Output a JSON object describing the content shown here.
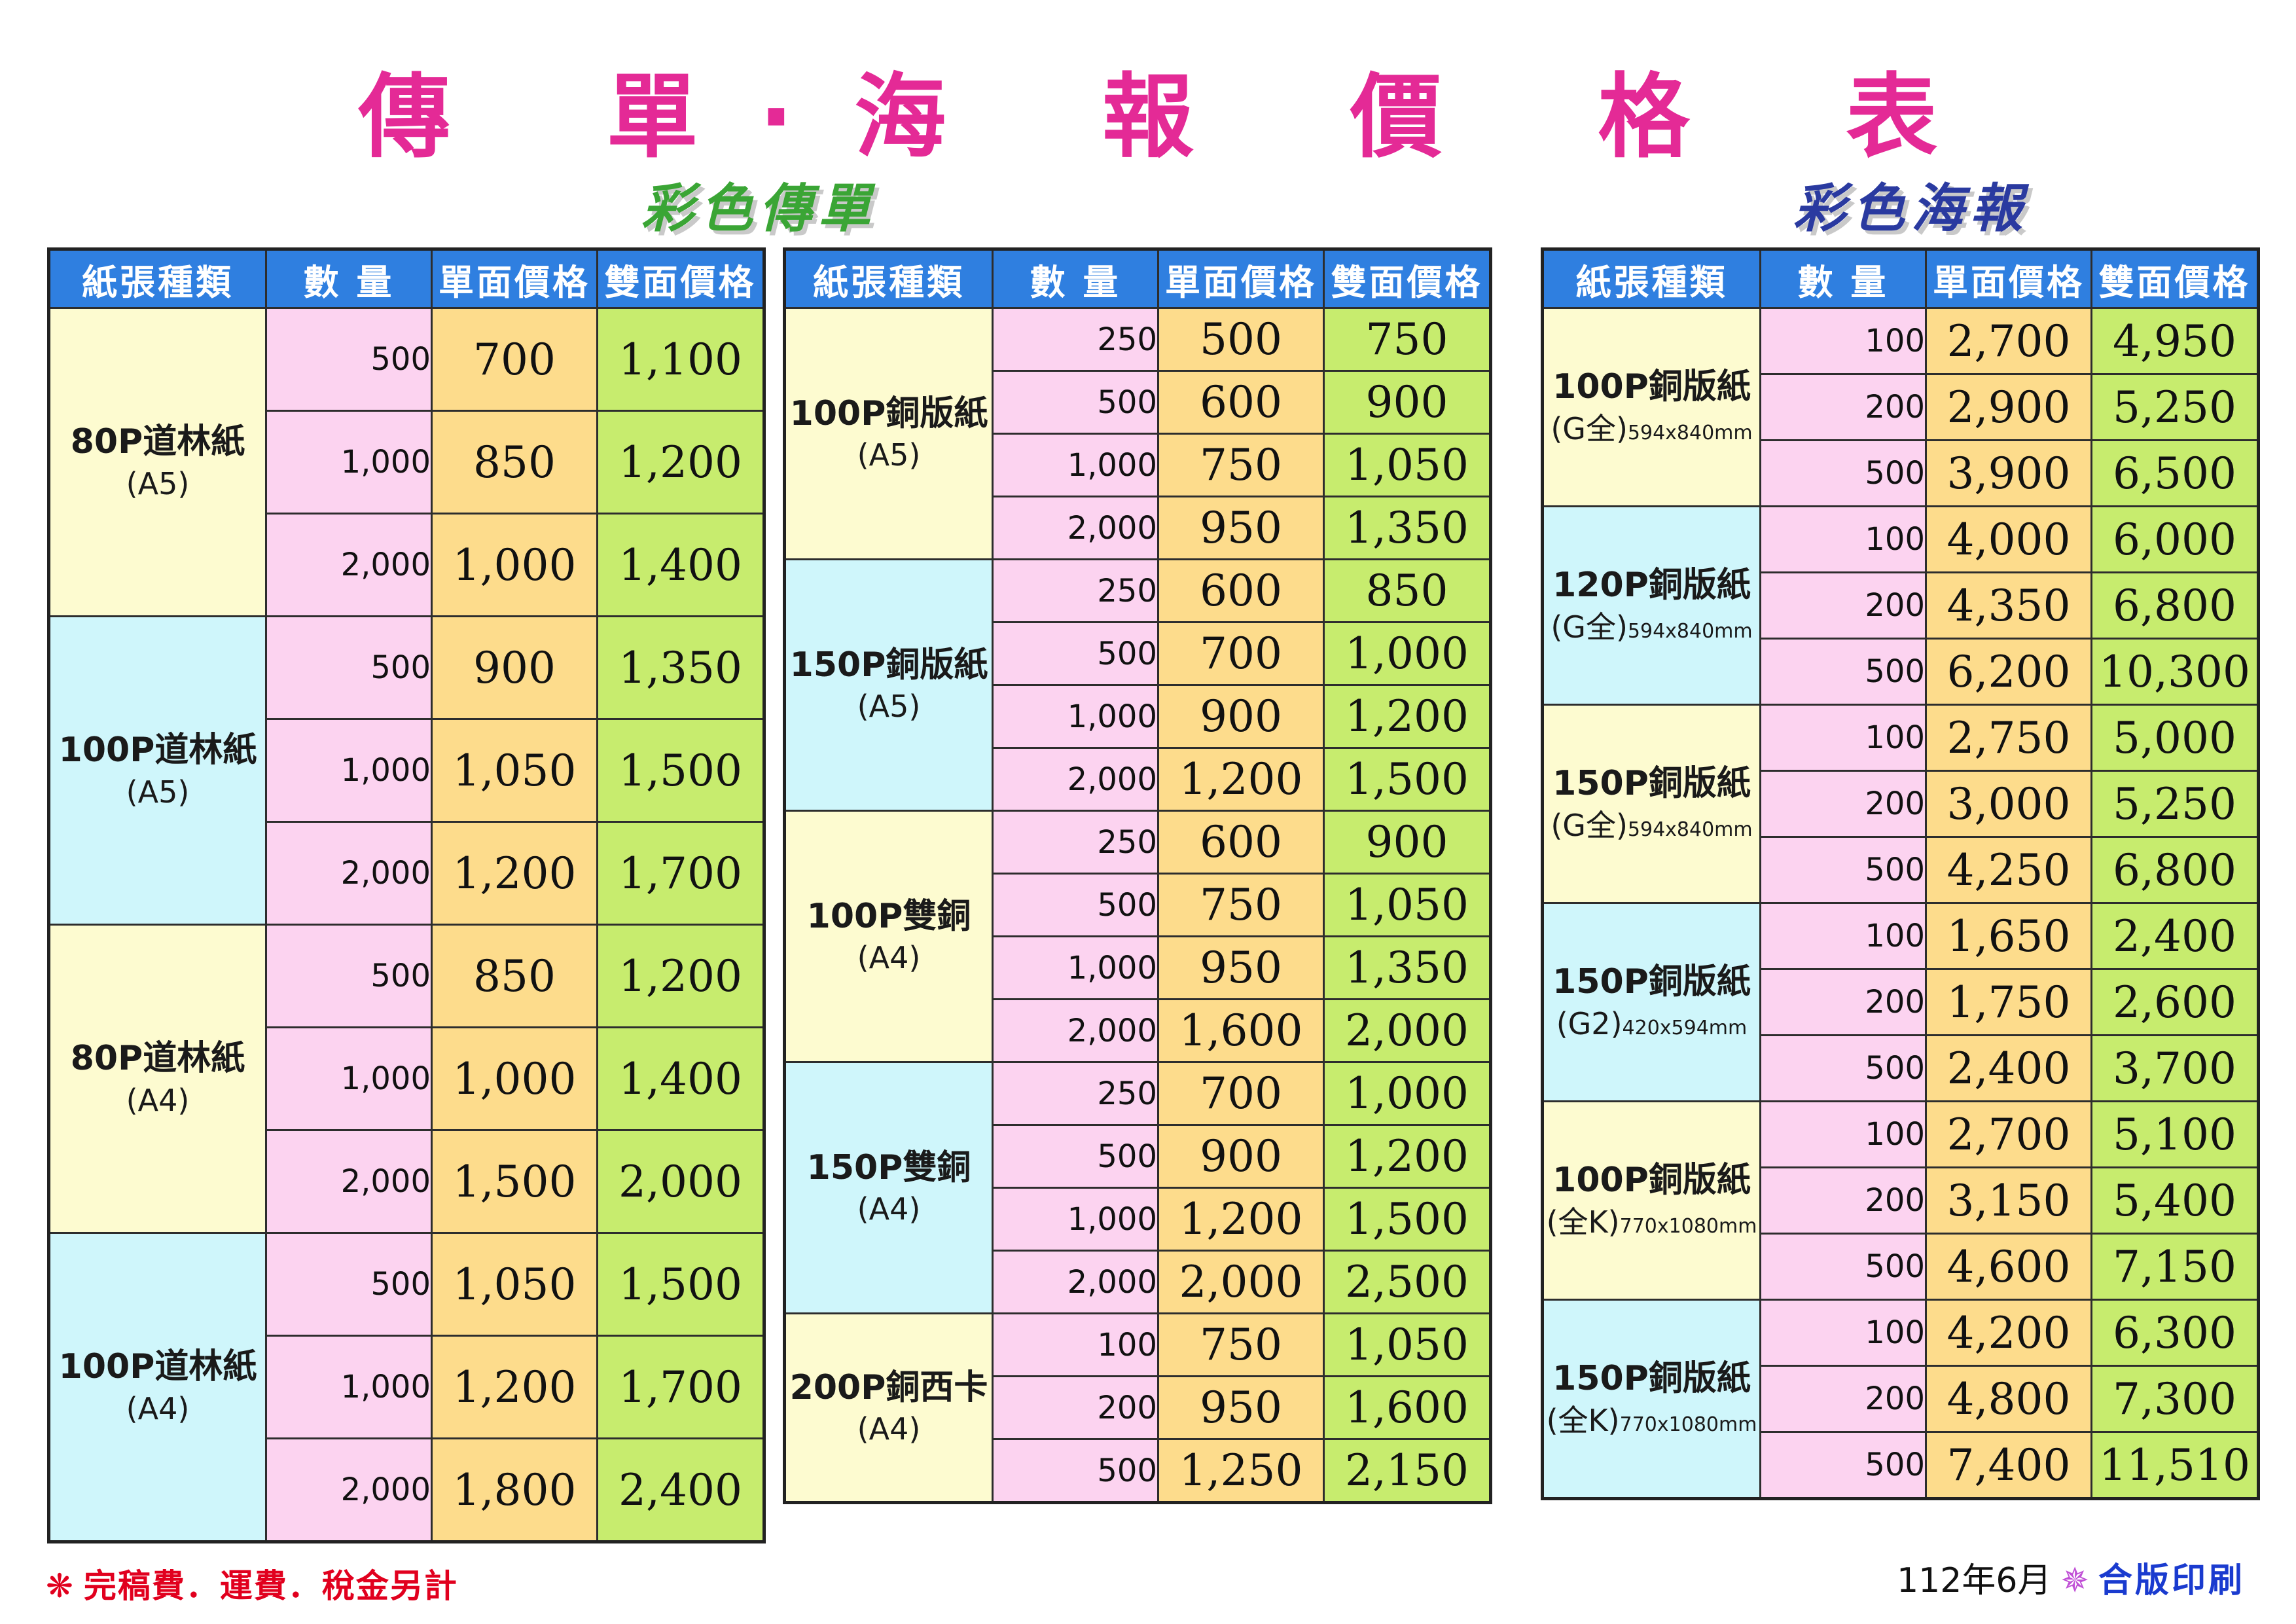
{
  "title": "傳 單‧海 報 價 格 表",
  "flyer_heading": "彩色傳單",
  "poster_heading": "彩色海報",
  "headers": {
    "type": "紙張種類",
    "qty": "數 量",
    "single": "單面價格",
    "double": "雙面價格"
  },
  "flyer_left": [
    {
      "name": "80P道林紙",
      "size": "(A5)",
      "size_small": "",
      "color": "y",
      "rows": [
        [
          "500",
          "700",
          "1,100"
        ],
        [
          "1,000",
          "850",
          "1,200"
        ],
        [
          "2,000",
          "1,000",
          "1,400"
        ]
      ]
    },
    {
      "name": "100P道林紙",
      "size": "(A5)",
      "size_small": "",
      "color": "b",
      "rows": [
        [
          "500",
          "900",
          "1,350"
        ],
        [
          "1,000",
          "1,050",
          "1,500"
        ],
        [
          "2,000",
          "1,200",
          "1,700"
        ]
      ]
    },
    {
      "name": "80P道林紙",
      "size": "(A4)",
      "size_small": "",
      "color": "y",
      "rows": [
        [
          "500",
          "850",
          "1,200"
        ],
        [
          "1,000",
          "1,000",
          "1,400"
        ],
        [
          "2,000",
          "1,500",
          "2,000"
        ]
      ]
    },
    {
      "name": "100P道林紙",
      "size": "(A4)",
      "size_small": "",
      "color": "b",
      "rows": [
        [
          "500",
          "1,050",
          "1,500"
        ],
        [
          "1,000",
          "1,200",
          "1,700"
        ],
        [
          "2,000",
          "1,800",
          "2,400"
        ]
      ]
    }
  ],
  "flyer_right": [
    {
      "name": "100P銅版紙",
      "size": "(A5)",
      "size_small": "",
      "color": "y",
      "rows": [
        [
          "250",
          "500",
          "750"
        ],
        [
          "500",
          "600",
          "900"
        ],
        [
          "1,000",
          "750",
          "1,050"
        ],
        [
          "2,000",
          "950",
          "1,350"
        ]
      ]
    },
    {
      "name": "150P銅版紙",
      "size": "(A5)",
      "size_small": "",
      "color": "b",
      "rows": [
        [
          "250",
          "600",
          "850"
        ],
        [
          "500",
          "700",
          "1,000"
        ],
        [
          "1,000",
          "900",
          "1,200"
        ],
        [
          "2,000",
          "1,200",
          "1,500"
        ]
      ]
    },
    {
      "name": "100P雙銅",
      "size": "(A4)",
      "size_small": "",
      "color": "y",
      "rows": [
        [
          "250",
          "600",
          "900"
        ],
        [
          "500",
          "750",
          "1,050"
        ],
        [
          "1,000",
          "950",
          "1,350"
        ],
        [
          "2,000",
          "1,600",
          "2,000"
        ]
      ]
    },
    {
      "name": "150P雙銅",
      "size": "(A4)",
      "size_small": "",
      "color": "b",
      "rows": [
        [
          "250",
          "700",
          "1,000"
        ],
        [
          "500",
          "900",
          "1,200"
        ],
        [
          "1,000",
          "1,200",
          "1,500"
        ],
        [
          "2,000",
          "2,000",
          "2,500"
        ]
      ]
    },
    {
      "name": "200P銅西卡",
      "size": "(A4)",
      "size_small": "",
      "color": "y",
      "rows": [
        [
          "100",
          "750",
          "1,050"
        ],
        [
          "200",
          "950",
          "1,600"
        ],
        [
          "500",
          "1,250",
          "2,150"
        ]
      ]
    }
  ],
  "poster": [
    {
      "name": "100P銅版紙",
      "size": "(G全)",
      "size_small": "594x840mm",
      "color": "y",
      "rows": [
        [
          "100",
          "2,700",
          "4,950"
        ],
        [
          "200",
          "2,900",
          "5,250"
        ],
        [
          "500",
          "3,900",
          "6,500"
        ]
      ]
    },
    {
      "name": "120P銅版紙",
      "size": "(G全)",
      "size_small": "594x840mm",
      "color": "b",
      "rows": [
        [
          "100",
          "4,000",
          "6,000"
        ],
        [
          "200",
          "4,350",
          "6,800"
        ],
        [
          "500",
          "6,200",
          "10,300"
        ]
      ]
    },
    {
      "name": "150P銅版紙",
      "size": "(G全)",
      "size_small": "594x840mm",
      "color": "y",
      "rows": [
        [
          "100",
          "2,750",
          "5,000"
        ],
        [
          "200",
          "3,000",
          "5,250"
        ],
        [
          "500",
          "4,250",
          "6,800"
        ]
      ]
    },
    {
      "name": "150P銅版紙",
      "size": "(G2)",
      "size_small": "420x594mm",
      "color": "b",
      "rows": [
        [
          "100",
          "1,650",
          "2,400"
        ],
        [
          "200",
          "1,750",
          "2,600"
        ],
        [
          "500",
          "2,400",
          "3,700"
        ]
      ]
    },
    {
      "name": "100P銅版紙",
      "size": "(全K)",
      "size_small": "770x1080mm",
      "color": "y",
      "rows": [
        [
          "100",
          "2,700",
          "5,100"
        ],
        [
          "200",
          "3,150",
          "5,400"
        ],
        [
          "500",
          "4,600",
          "7,150"
        ]
      ]
    },
    {
      "name": "150P銅版紙",
      "size": "(全K)",
      "size_small": "770x1080mm",
      "color": "b",
      "rows": [
        [
          "100",
          "4,200",
          "6,300"
        ],
        [
          "200",
          "4,800",
          "7,300"
        ],
        [
          "500",
          "7,400",
          "11,510"
        ]
      ]
    }
  ],
  "footer": {
    "note_star": "❋",
    "note": "完稿費．運費．稅金另計",
    "date": "112年6月",
    "mark": "✵",
    "shop": "合版印刷"
  },
  "colors": {
    "title": "#e42a96",
    "header": "#2f7fe0",
    "qty": "#fcd3f0",
    "single": "#fddc8c",
    "double": "#c7ec6e",
    "yellow": "#fdfbd0",
    "blue": "#cff6fb"
  }
}
